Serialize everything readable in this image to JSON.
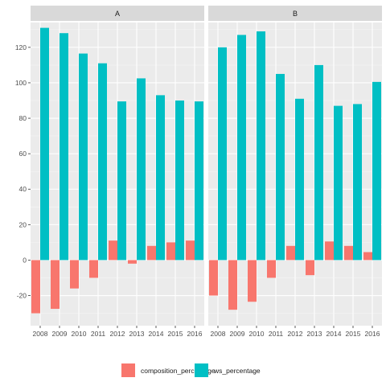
{
  "chart_data": {
    "type": "bar",
    "categories": [
      "2008",
      "2009",
      "2010",
      "2011",
      "2012",
      "2013",
      "2014",
      "2015",
      "2016"
    ],
    "ylim": [
      -37,
      134
    ],
    "yticks": [
      -20,
      0,
      20,
      40,
      60,
      80,
      100,
      120
    ],
    "grid": true,
    "legend_position": "bottom",
    "colors": {
      "composition_percentage": "#F8766D",
      "ws_percentage": "#00BFC4",
      "panel_bg": "#EBEBEB",
      "strip_bg": "#D9D9D9",
      "grid_major": "#FFFFFF",
      "grid_minor": "#F5F5F5"
    },
    "legend": [
      {
        "key": "composition_percentage",
        "label": "composition_percentage"
      },
      {
        "key": "ws_percentage",
        "label": "ws_percentage"
      }
    ],
    "panels": [
      {
        "title": "A",
        "series": [
          {
            "name": "composition_percentage",
            "values": [
              -30,
              -27.5,
              -16,
              -10,
              11,
              -2,
              8,
              10,
              11
            ]
          },
          {
            "name": "ws_percentage",
            "values": [
              131,
              128,
              116.5,
              111,
              89.5,
              102.5,
              93,
              90,
              89.5
            ]
          }
        ]
      },
      {
        "title": "B",
        "series": [
          {
            "name": "composition_percentage",
            "values": [
              -20,
              -28,
              -23.5,
              -10,
              8,
              -8.5,
              10.5,
              8,
              4.5
            ]
          },
          {
            "name": "ws_percentage",
            "values": [
              120,
              127,
              129,
              105,
              91,
              110,
              87,
              88,
              100.5
            ]
          }
        ]
      }
    ]
  }
}
